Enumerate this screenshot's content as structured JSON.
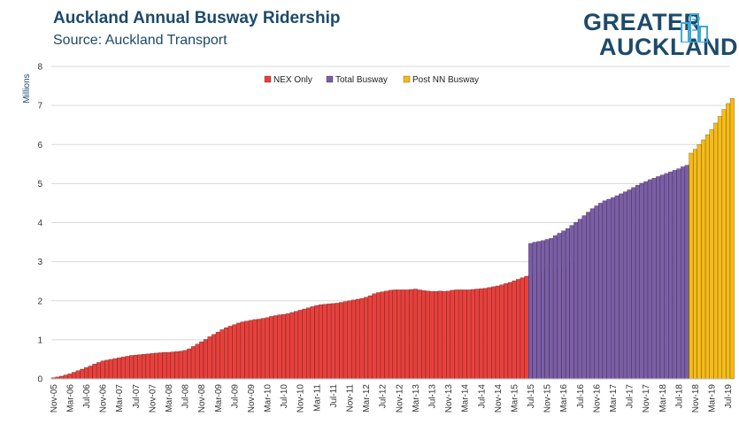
{
  "header": {
    "title": "Auckland Annual Busway Ridership",
    "subtitle": "Source: Auckland  Transport"
  },
  "logo": {
    "line1": "GREATER",
    "line2": "AUCKLAND",
    "icon": "city-buildings-icon",
    "color": "#1d4a6a",
    "accent": "#3fa9d8"
  },
  "colors": {
    "nex": "#e8403c",
    "total": "#7b5ea6",
    "post": "#f5bb18",
    "grid": "#d9d9d9"
  },
  "chart_data": {
    "type": "bar",
    "ylabel": "Millions",
    "ylim": [
      0,
      8
    ],
    "yticks": [
      0,
      1,
      2,
      3,
      4,
      5,
      6,
      7,
      8
    ],
    "x_tick_labels": [
      "Nov-05",
      "Mar-06",
      "Jul-06",
      "Nov-06",
      "Mar-07",
      "Jul-07",
      "Nov-07",
      "Mar-08",
      "Jul-08",
      "Nov-08",
      "Mar-09",
      "Jul-09",
      "Nov-09",
      "Mar-10",
      "Jul-10",
      "Nov-10",
      "Mar-11",
      "Jul-11",
      "Nov-11",
      "Mar-12",
      "Jul-12",
      "Nov-12",
      "Mar-13",
      "Jul-13",
      "Nov-13",
      "Mar-14",
      "Jul-14",
      "Nov-14",
      "Mar-15",
      "Jul-15",
      "Nov-15",
      "Mar-16",
      "Jul-16",
      "Nov-16",
      "Mar-17",
      "Jul-17",
      "Nov-17",
      "Mar-18",
      "Jul-18",
      "Nov-18",
      "Mar-19",
      "Jul-19"
    ],
    "legend": {
      "placement": "top-center",
      "entries": [
        "NEX Only",
        "Total Busway",
        "Post NN Busway"
      ]
    },
    "series": [
      {
        "name": "NEX Only",
        "start": "Nov-05",
        "values": [
          0.03,
          0.05,
          0.07,
          0.1,
          0.13,
          0.17,
          0.21,
          0.25,
          0.29,
          0.33,
          0.38,
          0.42,
          0.46,
          0.48,
          0.5,
          0.52,
          0.54,
          0.56,
          0.58,
          0.6,
          0.61,
          0.62,
          0.63,
          0.64,
          0.65,
          0.66,
          0.67,
          0.68,
          0.68,
          0.69,
          0.7,
          0.71,
          0.73,
          0.77,
          0.83,
          0.89,
          0.95,
          1.01,
          1.08,
          1.14,
          1.2,
          1.26,
          1.31,
          1.35,
          1.39,
          1.43,
          1.46,
          1.48,
          1.5,
          1.52,
          1.53,
          1.55,
          1.57,
          1.6,
          1.62,
          1.64,
          1.65,
          1.67,
          1.7,
          1.73,
          1.76,
          1.79,
          1.82,
          1.85,
          1.88,
          1.9,
          1.91,
          1.92,
          1.93,
          1.94,
          1.96,
          1.98,
          2.0,
          2.02,
          2.04,
          2.06,
          2.09,
          2.13,
          2.18,
          2.21,
          2.23,
          2.25,
          2.27,
          2.28,
          2.28,
          2.28,
          2.28,
          2.29,
          2.3,
          2.28,
          2.26,
          2.25,
          2.24,
          2.24,
          2.25,
          2.24,
          2.25,
          2.27,
          2.28,
          2.28,
          2.28,
          2.28,
          2.29,
          2.3,
          2.31,
          2.32,
          2.34,
          2.36,
          2.38,
          2.41,
          2.44,
          2.47,
          2.51,
          2.55,
          2.59,
          2.63,
          2.67,
          2.71,
          2.74,
          2.77,
          2.8,
          2.82,
          2.84,
          2.85,
          2.86,
          2.89,
          2.99
        ]
      },
      {
        "name": "Total Busway",
        "start": "Jul-15",
        "values": [
          3.47,
          3.5,
          3.52,
          3.54,
          3.57,
          3.6,
          3.67,
          3.73,
          3.79,
          3.85,
          3.93,
          4.01,
          4.09,
          4.18,
          4.27,
          4.36,
          4.43,
          4.5,
          4.56,
          4.6,
          4.64,
          4.69,
          4.74,
          4.79,
          4.84,
          4.9,
          4.96,
          5.01,
          5.05,
          5.1,
          5.14,
          5.18,
          5.22,
          5.26,
          5.3,
          5.34,
          5.38,
          5.43,
          5.47,
          5.51,
          5.55,
          5.58,
          5.62
        ]
      },
      {
        "name": "Post NN Busway",
        "start": "Oct-18",
        "values": [
          5.78,
          5.88,
          6.0,
          6.12,
          6.25,
          6.38,
          6.55,
          6.72,
          6.9,
          7.05,
          7.18
        ]
      }
    ]
  }
}
